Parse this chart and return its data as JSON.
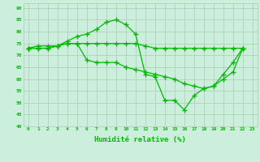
{
  "xlabel": "Humidité relative (%)",
  "bg_color": "#cceedd",
  "grid_color": "#aaccaa",
  "line_color": "#00bb00",
  "xlim": [
    -0.5,
    23.5
  ],
  "ylim": [
    40,
    92
  ],
  "yticks": [
    40,
    45,
    50,
    55,
    60,
    65,
    70,
    75,
    80,
    85,
    90
  ],
  "xticks": [
    0,
    1,
    2,
    3,
    4,
    5,
    6,
    7,
    8,
    9,
    10,
    11,
    12,
    13,
    14,
    15,
    16,
    17,
    18,
    19,
    20,
    21,
    22,
    23
  ],
  "series1_x": [
    0,
    1,
    2,
    3,
    4,
    5,
    6,
    7,
    8,
    9,
    10,
    11,
    12,
    13,
    14,
    15,
    16,
    17,
    18,
    19,
    20,
    21,
    22
  ],
  "series1_y": [
    73,
    74,
    74,
    74,
    76,
    78,
    79,
    81,
    84,
    85,
    83,
    79,
    62,
    61,
    51,
    51,
    47,
    53,
    56,
    57,
    62,
    67,
    73
  ],
  "series2_x": [
    0,
    1,
    2,
    3,
    4,
    5,
    6,
    7,
    8,
    9,
    10,
    11,
    12,
    13,
    14,
    15,
    16,
    17,
    18,
    19,
    20,
    21,
    22
  ],
  "series2_y": [
    73,
    73,
    73,
    74,
    75,
    75,
    75,
    75,
    75,
    75,
    75,
    75,
    74,
    73,
    73,
    73,
    73,
    73,
    73,
    73,
    73,
    73,
    73
  ],
  "series3_x": [
    0,
    1,
    2,
    3,
    4,
    5,
    6,
    7,
    8,
    9,
    10,
    11,
    12,
    13,
    14,
    15,
    16,
    17,
    18,
    19,
    20,
    21,
    22
  ],
  "series3_y": [
    73,
    73,
    73,
    74,
    75,
    75,
    68,
    67,
    67,
    67,
    65,
    64,
    63,
    62,
    61,
    60,
    58,
    57,
    56,
    57,
    60,
    63,
    73
  ]
}
